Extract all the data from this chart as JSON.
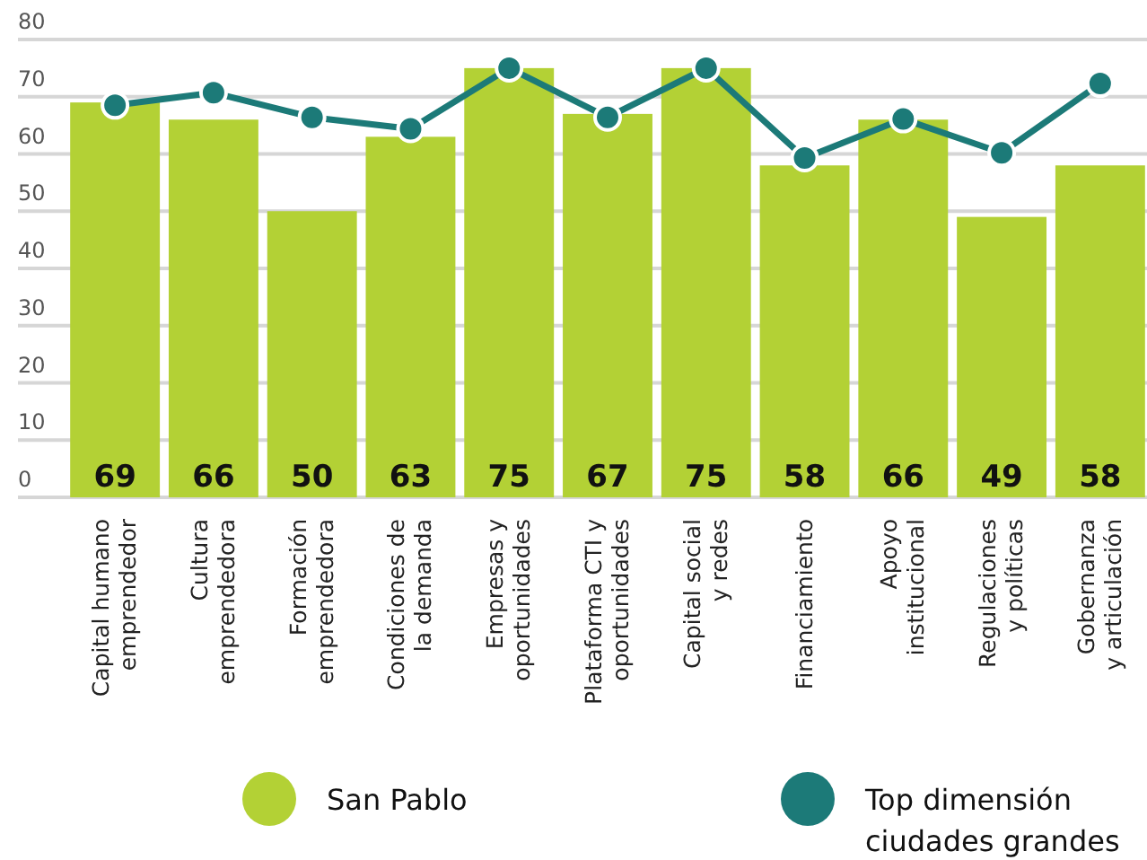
{
  "chart_data": {
    "type": "bar",
    "categories": [
      "Capital humano\nemprendedor",
      "Cultura\nemprendedora",
      "Formación\nemprendedora",
      "Condiciones de\nla demanda",
      "Empresas y\noportunidades",
      "Plataforma CTI y\noportunidades",
      "Capital social\ny redes",
      "Financiamiento",
      "Apoyo\ninstitucional",
      "Regulaciones\ny políticas",
      "Gobernanza\ny articulación"
    ],
    "series": [
      {
        "name": "San Pablo",
        "color": "#b3d135",
        "values": [
          69,
          66,
          50,
          63,
          75,
          67,
          75,
          58,
          66,
          49,
          58
        ],
        "value_labels": [
          "69",
          "66",
          "50",
          "63",
          "75",
          "67",
          "75",
          "58",
          "66",
          "49",
          "58"
        ]
      },
      {
        "name": "Top dimensión\nciudades grandes",
        "type": "line",
        "color": "#1c7a78",
        "marker": "circle",
        "values": [
          68.5,
          70.7,
          66.4,
          64.4,
          75,
          66.4,
          75,
          59.3,
          66.1,
          60.2,
          72.3
        ]
      }
    ],
    "ylim": [
      0,
      80
    ],
    "yticks": [
      0,
      10,
      20,
      30,
      40,
      50,
      60,
      70,
      80
    ],
    "grid": "y",
    "legend": "bottom"
  }
}
